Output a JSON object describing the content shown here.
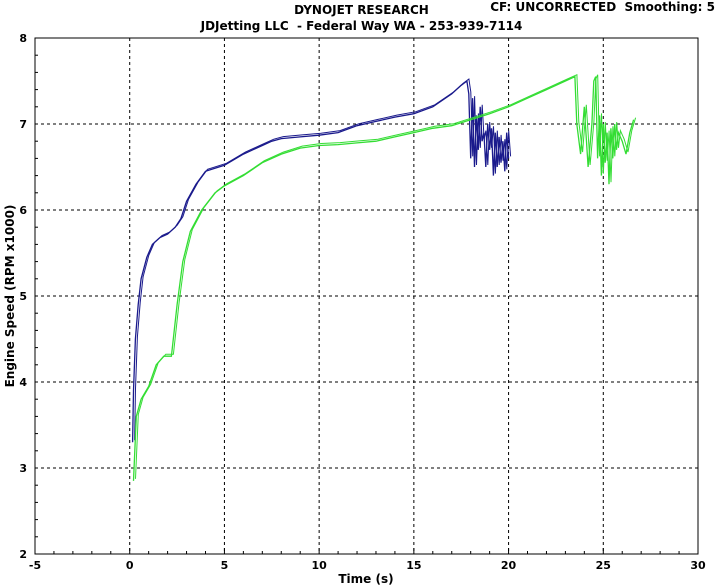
{
  "header": {
    "title": "DYNOJET RESEARCH",
    "subtitle": "JDJetting LLC  - Federal Way WA - 253-939-7114",
    "cf_info": "CF: UNCORRECTED  Smoothing: 5"
  },
  "chart_data": {
    "type": "line",
    "xlabel": "Time (s)",
    "ylabel": "Engine Speed (RPM x1000)",
    "xlim": [
      -5,
      30
    ],
    "ylim": [
      2,
      8
    ],
    "xticks": [
      -5,
      0,
      5,
      10,
      15,
      20,
      25,
      30
    ],
    "yticks": [
      2,
      3,
      4,
      5,
      6,
      7,
      8
    ],
    "grid": true,
    "colors": {
      "series_a": "#1a1a8c",
      "series_b": "#33dd33"
    },
    "series": [
      {
        "color": "#1a1a8c",
        "x": [
          0.15,
          0.2,
          0.3,
          0.45,
          0.6,
          0.9,
          1.2,
          1.6,
          2.0,
          2.4,
          2.7,
          3.0,
          3.5,
          4.0,
          5.0,
          6.0,
          7.0,
          7.5,
          8.0,
          9.0,
          10.0,
          11.0,
          12.0,
          13.0,
          14.0,
          15.0,
          16.0,
          17.0,
          17.5,
          17.8,
          17.9,
          18.0,
          18.1,
          18.2,
          18.3,
          18.4,
          18.5,
          18.6,
          18.7,
          18.8,
          18.9,
          19.0,
          19.1,
          19.2,
          19.3,
          19.4,
          19.5,
          19.6,
          19.7,
          19.8,
          19.9,
          20.0
        ],
        "y": [
          3.3,
          3.9,
          4.5,
          4.9,
          5.2,
          5.45,
          5.6,
          5.68,
          5.72,
          5.8,
          5.9,
          6.1,
          6.3,
          6.45,
          6.52,
          6.65,
          6.75,
          6.8,
          6.83,
          6.85,
          6.87,
          6.9,
          6.98,
          7.03,
          7.08,
          7.12,
          7.2,
          7.35,
          7.45,
          7.5,
          7.35,
          6.6,
          7.3,
          6.5,
          7.1,
          6.7,
          7.2,
          6.8,
          6.9,
          6.5,
          7.0,
          6.7,
          6.95,
          6.4,
          6.9,
          6.5,
          6.85,
          6.55,
          6.8,
          6.45,
          6.9,
          6.6
        ]
      },
      {
        "color": "#33dd33",
        "x": [
          0.2,
          0.35,
          0.6,
          1.0,
          1.4,
          1.8,
          2.2,
          2.5,
          2.8,
          3.2,
          3.8,
          4.5,
          5.0,
          6.0,
          7.0,
          8.0,
          9.0,
          10.0,
          11.0,
          12.0,
          13.0,
          14.0,
          15.0,
          16.0,
          17.0,
          18.0,
          19.0,
          20.0,
          21.0,
          22.0,
          23.0,
          23.5,
          23.6,
          23.8,
          24.0,
          24.2,
          24.4,
          24.5,
          24.6,
          24.7,
          24.8,
          24.9,
          25.0,
          25.1,
          25.2,
          25.3,
          25.4,
          25.5,
          25.6,
          25.7,
          25.8,
          26.0,
          26.2,
          26.4,
          26.6
        ],
        "y": [
          2.85,
          3.6,
          3.8,
          3.95,
          4.2,
          4.3,
          4.3,
          4.9,
          5.4,
          5.75,
          6.0,
          6.2,
          6.28,
          6.4,
          6.55,
          6.65,
          6.72,
          6.75,
          6.76,
          6.78,
          6.8,
          6.85,
          6.9,
          6.95,
          6.98,
          7.05,
          7.12,
          7.2,
          7.3,
          7.4,
          7.5,
          7.55,
          7.0,
          6.65,
          7.2,
          6.5,
          7.0,
          7.5,
          7.55,
          6.6,
          7.1,
          6.4,
          7.0,
          6.55,
          6.9,
          6.3,
          6.95,
          6.6,
          7.0,
          6.7,
          6.9,
          6.8,
          6.65,
          6.9,
          7.05
        ]
      }
    ]
  }
}
